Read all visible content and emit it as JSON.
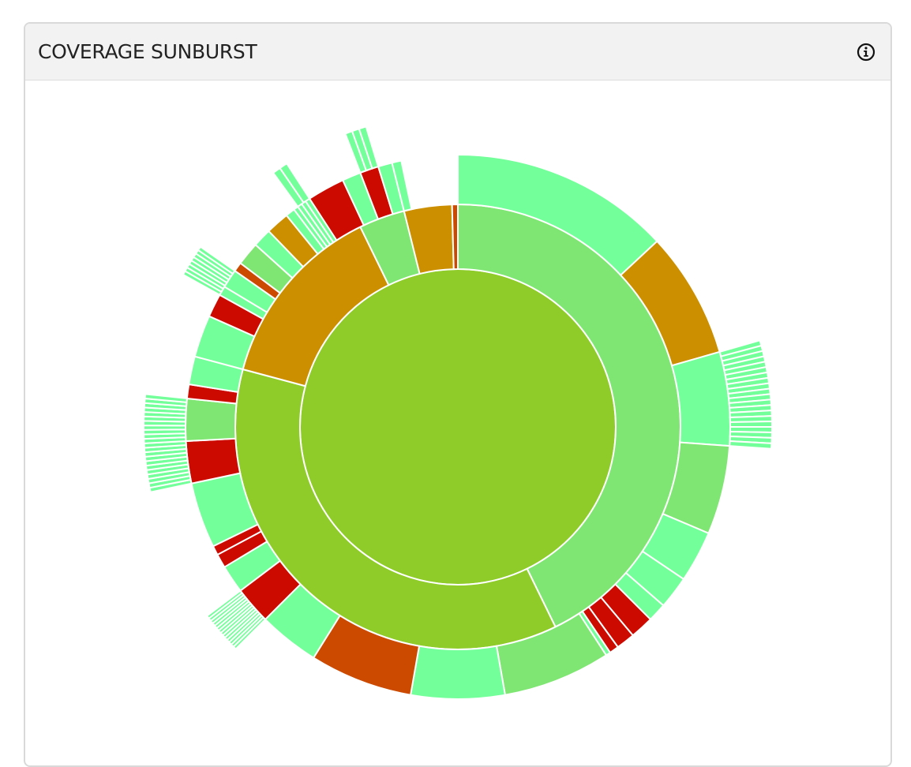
{
  "card": {
    "title": "COVERAGE SUNBURST",
    "info_icon": "info-circle-icon"
  },
  "chart_data": {
    "type": "sunburst",
    "colors": {
      "gold": "#cc8f00",
      "orange_red": "#cc4a00",
      "red": "#cc0a00",
      "lime": "#8fcc2a",
      "light_green": "#80e673",
      "mint": "#73ff99"
    },
    "rings": [
      {
        "level": 1,
        "segments": [
          {
            "start": 0,
            "end": 360,
            "color": "lime"
          }
        ]
      },
      {
        "level": 2,
        "segments": [
          {
            "start": 0,
            "end": 154,
            "color": "light_green"
          },
          {
            "start": 154,
            "end": 285,
            "color": "lime"
          },
          {
            "start": 285,
            "end": 334,
            "color": "gold"
          },
          {
            "start": 334,
            "end": 346,
            "color": "light_green"
          },
          {
            "start": 346,
            "end": 358.5,
            "color": "gold"
          },
          {
            "start": 358.5,
            "end": 360,
            "color": "orange_red"
          }
        ]
      },
      {
        "level": 3,
        "segments": [
          {
            "start": 0,
            "end": 47,
            "color": "mint"
          },
          {
            "start": 47,
            "end": 74,
            "color": "gold"
          },
          {
            "start": 74,
            "end": 94,
            "color": "mint"
          },
          {
            "start": 94,
            "end": 113,
            "color": "light_green"
          },
          {
            "start": 113,
            "end": 124,
            "color": "mint"
          },
          {
            "start": 124,
            "end": 131,
            "color": "mint"
          },
          {
            "start": 131,
            "end": 135,
            "color": "mint"
          },
          {
            "start": 135,
            "end": 140,
            "color": "red"
          },
          {
            "start": 140,
            "end": 144,
            "color": "red"
          },
          {
            "start": 144,
            "end": 146,
            "color": "red"
          },
          {
            "start": 146,
            "end": 147,
            "color": "mint"
          },
          {
            "start": 147,
            "end": 170,
            "color": "light_green"
          },
          {
            "start": 170,
            "end": 190,
            "color": "mint"
          },
          {
            "start": 190,
            "end": 212,
            "color": "orange_red"
          },
          {
            "start": 212,
            "end": 225,
            "color": "mint"
          },
          {
            "start": 225,
            "end": 233,
            "color": "red"
          },
          {
            "start": 233,
            "end": 239,
            "color": "mint"
          },
          {
            "start": 239,
            "end": 242,
            "color": "red"
          },
          {
            "start": 242,
            "end": 244,
            "color": "red"
          },
          {
            "start": 244,
            "end": 258,
            "color": "mint"
          },
          {
            "start": 258,
            "end": 267,
            "color": "red"
          },
          {
            "start": 267,
            "end": 276,
            "color": "light_green"
          },
          {
            "start": 276,
            "end": 279,
            "color": "red"
          },
          {
            "start": 279,
            "end": 285,
            "color": "mint"
          },
          {
            "start": 285,
            "end": 294,
            "color": "mint"
          },
          {
            "start": 294,
            "end": 299,
            "color": "red"
          },
          {
            "start": 299,
            "end": 301,
            "color": "mint"
          },
          {
            "start": 301,
            "end": 305,
            "color": "mint"
          },
          {
            "start": 305,
            "end": 307,
            "color": "orange_red"
          },
          {
            "start": 307,
            "end": 312,
            "color": "light_green"
          },
          {
            "start": 312,
            "end": 316,
            "color": "mint"
          },
          {
            "start": 316,
            "end": 321,
            "color": "gold"
          },
          {
            "start": 321,
            "end": 323,
            "color": "mint"
          },
          {
            "start": 323,
            "end": 324,
            "color": "mint"
          },
          {
            "start": 324,
            "end": 325,
            "color": "mint"
          },
          {
            "start": 325,
            "end": 326,
            "color": "mint"
          },
          {
            "start": 326,
            "end": 327,
            "color": "mint"
          },
          {
            "start": 327,
            "end": 335,
            "color": "red"
          },
          {
            "start": 335,
            "end": 339,
            "color": "mint"
          },
          {
            "start": 339,
            "end": 343,
            "color": "red"
          },
          {
            "start": 343,
            "end": 346,
            "color": "mint"
          },
          {
            "start": 346,
            "end": 348,
            "color": "mint"
          }
        ]
      },
      {
        "level": 4,
        "segments": [
          {
            "start": 74,
            "end": 94,
            "color": "mint",
            "count": 20
          },
          {
            "start": 225,
            "end": 233,
            "color": "mint",
            "count": 14
          },
          {
            "start": 258,
            "end": 276,
            "color": "mint",
            "count": 22
          },
          {
            "start": 299,
            "end": 305,
            "color": "mint",
            "count": 8
          },
          {
            "start": 324,
            "end": 327,
            "color": "mint",
            "count": 2
          },
          {
            "start": 339,
            "end": 343,
            "color": "mint",
            "count": 3
          }
        ]
      }
    ]
  }
}
